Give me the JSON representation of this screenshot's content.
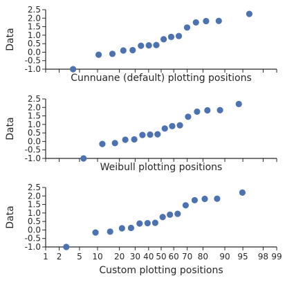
{
  "chart_data": [
    {
      "type": "scatter",
      "xlabel": "Cunnuane (default) plotting positions",
      "ylabel": "Data",
      "ylim": [
        -1.0,
        2.5
      ],
      "yticks": [
        "2.5",
        "2.0",
        "1.5",
        "1.0",
        "0.5",
        "0.0",
        "-0.5",
        "-1.0"
      ],
      "xscale": "probability",
      "xlim": [
        1,
        99
      ],
      "xticks": [
        1,
        2,
        5,
        10,
        20,
        30,
        40,
        50,
        60,
        70,
        80,
        90,
        95,
        98,
        99
      ],
      "tick_labels_shown": false,
      "series": [
        {
          "x": [
            3.8,
            10.4,
            16.3,
            22.3,
            28.3,
            34.2,
            40.2,
            46.1,
            52.0,
            58.0,
            63.9,
            69.9,
            75.8,
            81.7,
            87.7,
            96.2
          ],
          "y": [
            -1.0,
            -0.15,
            -0.1,
            0.1,
            0.12,
            0.38,
            0.4,
            0.42,
            0.76,
            0.9,
            0.95,
            1.45,
            1.75,
            1.83,
            1.84,
            2.25
          ]
        }
      ]
    },
    {
      "type": "scatter",
      "xlabel": "Weibull plotting positions",
      "ylabel": "Data",
      "ylim": [
        -1.0,
        2.5
      ],
      "yticks": [
        "2.5",
        "2.0",
        "1.5",
        "1.0",
        "0.5",
        "0.0",
        "-0.5",
        "-1.0"
      ],
      "xscale": "probability",
      "xlim": [
        1,
        99
      ],
      "xticks": [
        1,
        2,
        5,
        10,
        20,
        30,
        40,
        50,
        60,
        70,
        80,
        90,
        95,
        98,
        99
      ],
      "tick_labels_shown": false,
      "series": [
        {
          "x": [
            5.9,
            11.8,
            17.6,
            23.5,
            29.4,
            35.3,
            41.2,
            47.1,
            52.9,
            58.8,
            64.7,
            70.6,
            76.5,
            82.4,
            88.2,
            94.1
          ],
          "y": [
            -1.0,
            -0.15,
            -0.1,
            0.1,
            0.12,
            0.38,
            0.4,
            0.42,
            0.76,
            0.9,
            0.95,
            1.45,
            1.75,
            1.83,
            1.84,
            2.2
          ]
        }
      ]
    },
    {
      "type": "scatter",
      "xlabel": "Custom plotting positions",
      "ylabel": "Data",
      "ylim": [
        -1.0,
        2.5
      ],
      "yticks": [
        "2.5",
        "2.0",
        "1.5",
        "1.0",
        "0.5",
        "0.0",
        "-0.5",
        "-1.0"
      ],
      "xscale": "probability",
      "xlim": [
        1,
        99
      ],
      "xticks": [
        1,
        2,
        5,
        10,
        20,
        30,
        40,
        50,
        60,
        70,
        80,
        90,
        95,
        98,
        99
      ],
      "xticklabels": [
        "1",
        "2",
        "5",
        "10",
        "20",
        "30",
        "40",
        "50",
        "60",
        "70",
        "80",
        "90",
        "95",
        "98",
        "99"
      ],
      "tick_labels_shown": true,
      "series": [
        {
          "x": [
            2.8,
            9.3,
            15.2,
            21.5,
            27.2,
            33.2,
            39.2,
            45.2,
            51.2,
            57.0,
            63.0,
            68.9,
            75.0,
            81.0,
            87.0,
            94.9
          ],
          "y": [
            -1.0,
            -0.15,
            -0.1,
            0.1,
            0.12,
            0.38,
            0.4,
            0.42,
            0.76,
            0.9,
            0.95,
            1.45,
            1.75,
            1.83,
            1.84,
            2.2
          ]
        }
      ]
    }
  ],
  "style": {
    "marker_color": "#4c72b0",
    "axis_color": "#262626",
    "background": "#ffffff"
  }
}
